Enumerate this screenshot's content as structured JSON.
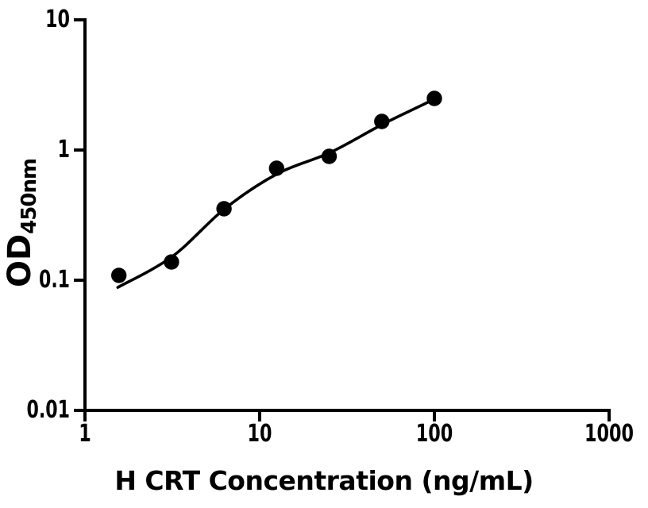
{
  "figure": {
    "background": "#ffffff",
    "foreground": "#000000"
  },
  "chart_data": {
    "type": "scatter",
    "title": "",
    "xlabel": "H CRT Concentration (ng/mL)",
    "ylabel_main": "OD",
    "ylabel_sub": "450nm",
    "x_scale": "log",
    "y_scale": "log",
    "xlim": [
      1,
      1000
    ],
    "ylim": [
      0.01,
      10
    ],
    "x_ticks": [
      1,
      10,
      100,
      1000
    ],
    "x_tick_labels": [
      "1",
      "10",
      "100",
      "1000"
    ],
    "y_ticks": [
      0.01,
      0.1,
      1,
      10
    ],
    "y_tick_labels": [
      "0.01",
      "0.1",
      "1",
      "10"
    ],
    "grid": false,
    "legend": null,
    "marker": "circle",
    "marker_color": "#000000",
    "line_color": "#000000",
    "series": [
      {
        "name": "standard-points",
        "type": "scatter",
        "x": [
          1.563,
          3.125,
          6.25,
          12.5,
          25,
          50,
          100
        ],
        "y": [
          0.109,
          0.138,
          0.354,
          0.724,
          0.894,
          1.658,
          2.49
        ]
      },
      {
        "name": "fit-curve",
        "type": "line",
        "x": [
          1.54,
          3.16,
          6.31,
          12.6,
          25.4,
          51.2,
          102
        ],
        "y": [
          0.088,
          0.152,
          0.354,
          0.656,
          0.959,
          1.589,
          2.49
        ]
      }
    ]
  }
}
